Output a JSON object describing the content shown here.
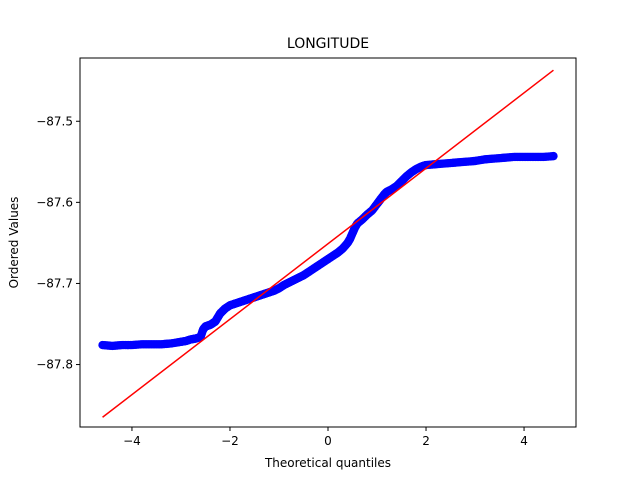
{
  "chart_data": {
    "type": "scatter",
    "title": "LONGITUDE",
    "xlabel": "Theoretical quantiles",
    "ylabel": "Ordered Values",
    "xlim": [
      -5.06,
      5.06
    ],
    "ylim": [
      -87.877,
      -87.422
    ],
    "x_ticks": [
      -4,
      -2,
      0,
      2,
      4
    ],
    "x_tick_labels": [
      "−4",
      "−2",
      "0",
      "2",
      "4"
    ],
    "y_ticks": [
      -87.8,
      -87.7,
      -87.6,
      -87.5
    ],
    "y_tick_labels": [
      "−87.8",
      "−87.7",
      "−87.6",
      "−87.5"
    ],
    "grid": false,
    "series": [
      {
        "kind": "points",
        "color": "#0000ff",
        "points": [
          [
            -4.6,
            -87.776
          ],
          [
            -4.4,
            -87.777
          ],
          [
            -4.2,
            -87.776
          ],
          [
            -4.0,
            -87.776
          ],
          [
            -3.8,
            -87.775
          ],
          [
            -3.6,
            -87.775
          ],
          [
            -3.4,
            -87.775
          ],
          [
            -3.2,
            -87.774
          ],
          [
            -3.0,
            -87.772
          ],
          [
            -2.9,
            -87.771
          ],
          [
            -2.8,
            -87.769
          ],
          [
            -2.7,
            -87.768
          ],
          [
            -2.6,
            -87.766
          ],
          [
            -2.55,
            -87.757
          ],
          [
            -2.5,
            -87.753
          ],
          [
            -2.45,
            -87.752
          ],
          [
            -2.4,
            -87.751
          ],
          [
            -2.35,
            -87.749
          ],
          [
            -2.3,
            -87.747
          ],
          [
            -2.25,
            -87.742
          ],
          [
            -2.2,
            -87.737
          ],
          [
            -2.15,
            -87.734
          ],
          [
            -2.1,
            -87.731
          ],
          [
            -2.0,
            -87.727
          ],
          [
            -1.9,
            -87.725
          ],
          [
            -1.8,
            -87.723
          ],
          [
            -1.7,
            -87.721
          ],
          [
            -1.6,
            -87.719
          ],
          [
            -1.5,
            -87.717
          ],
          [
            -1.4,
            -87.715
          ],
          [
            -1.3,
            -87.713
          ],
          [
            -1.2,
            -87.711
          ],
          [
            -1.1,
            -87.709
          ],
          [
            -1.0,
            -87.706
          ],
          [
            -0.9,
            -87.702
          ],
          [
            -0.8,
            -87.699
          ],
          [
            -0.7,
            -87.696
          ],
          [
            -0.6,
            -87.693
          ],
          [
            -0.5,
            -87.69
          ],
          [
            -0.4,
            -87.686
          ],
          [
            -0.3,
            -87.682
          ],
          [
            -0.2,
            -87.678
          ],
          [
            -0.1,
            -87.674
          ],
          [
            0.0,
            -87.67
          ],
          [
            0.1,
            -87.666
          ],
          [
            0.2,
            -87.662
          ],
          [
            0.3,
            -87.657
          ],
          [
            0.4,
            -87.65
          ],
          [
            0.45,
            -87.645
          ],
          [
            0.5,
            -87.638
          ],
          [
            0.55,
            -87.631
          ],
          [
            0.6,
            -87.626
          ],
          [
            0.7,
            -87.621
          ],
          [
            0.8,
            -87.615
          ],
          [
            0.9,
            -87.61
          ],
          [
            1.0,
            -87.602
          ],
          [
            1.05,
            -87.598
          ],
          [
            1.1,
            -87.594
          ],
          [
            1.15,
            -87.59
          ],
          [
            1.2,
            -87.587
          ],
          [
            1.3,
            -87.584
          ],
          [
            1.4,
            -87.58
          ],
          [
            1.5,
            -87.574
          ],
          [
            1.6,
            -87.568
          ],
          [
            1.7,
            -87.563
          ],
          [
            1.8,
            -87.559
          ],
          [
            1.9,
            -87.556
          ],
          [
            2.0,
            -87.554
          ],
          [
            2.2,
            -87.553
          ],
          [
            2.4,
            -87.552
          ],
          [
            2.6,
            -87.551
          ],
          [
            2.8,
            -87.55
          ],
          [
            3.0,
            -87.549
          ],
          [
            3.2,
            -87.547
          ],
          [
            3.4,
            -87.546
          ],
          [
            3.6,
            -87.545
          ],
          [
            3.8,
            -87.544
          ],
          [
            4.0,
            -87.544
          ],
          [
            4.2,
            -87.544
          ],
          [
            4.4,
            -87.544
          ],
          [
            4.6,
            -87.543
          ]
        ]
      },
      {
        "kind": "line",
        "color": "#ff0000",
        "points": [
          [
            -4.6,
            -87.865
          ],
          [
            4.6,
            -87.437
          ]
        ]
      }
    ]
  }
}
